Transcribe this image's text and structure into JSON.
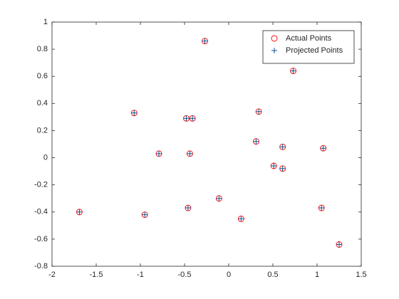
{
  "chart_data": {
    "type": "scatter",
    "series": [
      {
        "name": "Actual Points",
        "color": "#ff0000",
        "marker": "circle",
        "x": [
          -0.27,
          0.73,
          -1.07,
          -0.48,
          -0.41,
          0.34,
          -0.79,
          -0.44,
          0.31,
          0.61,
          1.07,
          0.51,
          0.61,
          -0.11,
          -1.69,
          -0.95,
          -0.46,
          1.05,
          0.14,
          1.25
        ],
        "values": [
          0.86,
          0.64,
          0.33,
          0.29,
          0.29,
          0.34,
          0.03,
          0.03,
          0.12,
          0.08,
          0.07,
          -0.06,
          -0.08,
          -0.3,
          -0.4,
          -0.42,
          -0.37,
          -0.37,
          -0.45,
          -0.64
        ]
      },
      {
        "name": "Projected Points",
        "color": "#0c4f8f",
        "marker": "plus",
        "x": [
          -0.27,
          0.73,
          -1.07,
          -0.48,
          -0.41,
          0.34,
          -0.79,
          -0.44,
          0.31,
          0.61,
          1.07,
          0.51,
          0.61,
          -0.11,
          -1.69,
          -0.95,
          -0.46,
          1.05,
          0.14,
          1.25
        ],
        "values": [
          0.86,
          0.64,
          0.33,
          0.29,
          0.29,
          0.34,
          0.03,
          0.03,
          0.12,
          0.08,
          0.07,
          -0.06,
          -0.08,
          -0.3,
          -0.4,
          -0.42,
          -0.37,
          -0.37,
          -0.45,
          -0.64
        ]
      }
    ],
    "xlim": [
      -2,
      1.5
    ],
    "xticks": [
      -2,
      -1.5,
      -1,
      -0.5,
      0,
      0.5,
      1,
      1.5
    ],
    "ylim": [
      -0.8,
      1
    ],
    "yticks": [
      -0.8,
      -0.6,
      -0.4,
      -0.2,
      0,
      0.2,
      0.4,
      0.6,
      0.8,
      1
    ],
    "grid": false,
    "legend": "northeast"
  }
}
